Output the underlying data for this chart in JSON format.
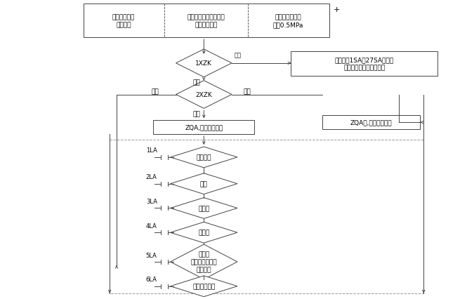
{
  "bg_color": "#ffffff",
  "line_color": "#444444",
  "fig_width": 6.65,
  "fig_height": 4.27,
  "dpi": 100,
  "top_box": {
    "text1": "压滤机各运动\n部件复位",
    "text2": "总电源、各设备电源、\n控制电源开关",
    "text3": "压滤机运行压力\n达到0.5MPa"
  },
  "manual_box_text": "分别按下1SA～27SA按钮各\n电磁阀通电，电动机运行",
  "d1_text": "1XZK",
  "d1_label_right": "手动",
  "d1_label_down": "自动",
  "d2_text": "2XZK",
  "d2_label_left": "卸料",
  "d2_label_right": "清洗",
  "d2_label_down": "正常",
  "zqa1_text": "ZQA,自动运行启动",
  "zqa2_text": "ZQA合,自动运行启动",
  "steps": [
    {
      "label": "1LA",
      "text": "压紧滤板"
    },
    {
      "label": "2LA",
      "text": "进料"
    },
    {
      "label": "3LA",
      "text": "压榨一"
    },
    {
      "label": "4LA",
      "text": "压榨二"
    },
    {
      "label": "5LA",
      "text": "顶吹排\n余料隔膜放水，\n吹风排水"
    },
    {
      "label": "6LA",
      "text": "头板松开放水"
    }
  ]
}
